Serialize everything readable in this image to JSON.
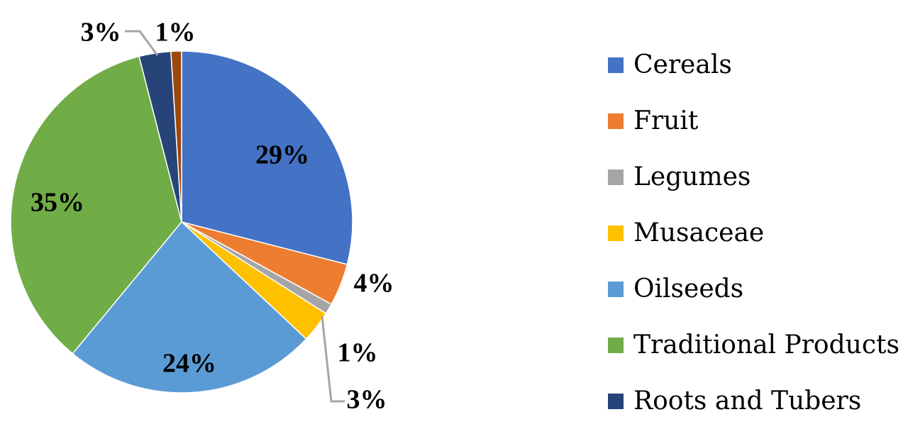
{
  "chart_data": {
    "type": "pie",
    "slices": [
      {
        "label": "Cereals",
        "value": 29,
        "display": "29%",
        "color": "#4472C4"
      },
      {
        "label": "Fruit",
        "value": 4,
        "display": "4%",
        "color": "#ED7D31"
      },
      {
        "label": "Legumes",
        "value": 1,
        "display": "1%",
        "color": "#A5A5A5"
      },
      {
        "label": "Musaceae",
        "value": 3,
        "display": "3%",
        "color": "#FFC000"
      },
      {
        "label": "Oilseeds",
        "value": 24,
        "display": "24%",
        "color": "#5B9BD5"
      },
      {
        "label": "Traditional Products",
        "value": 35,
        "display": "35%",
        "color": "#70AD47"
      },
      {
        "label": "Roots and Tubers",
        "value": 3,
        "display": "3%",
        "color": "#264478"
      },
      {
        "label": "",
        "value": 1,
        "display": "1%",
        "color": "#9E480E"
      }
    ],
    "legend": [
      "Cereals",
      "Fruit",
      "Legumes",
      "Musaceae",
      "Oilseeds",
      "Traditional Products",
      "Roots and Tubers"
    ],
    "legend_position": "right"
  }
}
